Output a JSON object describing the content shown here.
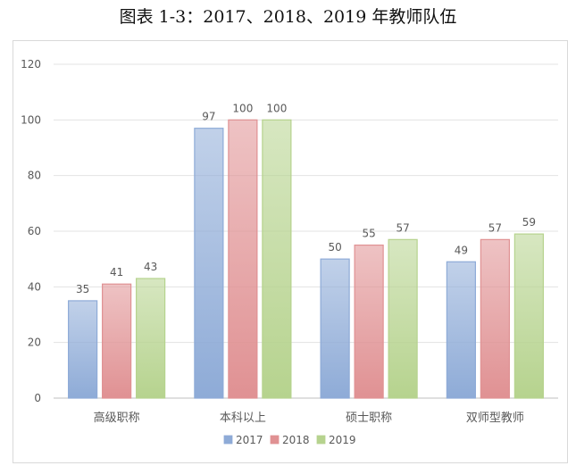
{
  "page": {
    "title": "图表 1-3：2017、2018、2019 年教师队伍"
  },
  "chart_data": {
    "type": "bar",
    "title": "",
    "xlabel": "",
    "ylabel": "",
    "categories": [
      "高级职称",
      "本科以上",
      "硕士职称",
      "双师型教师"
    ],
    "series": [
      {
        "name": "2017",
        "values": [
          35,
          97,
          50,
          49
        ],
        "color": "#8eabd7"
      },
      {
        "name": "2018",
        "values": [
          41,
          100,
          55,
          57
        ],
        "color": "#e09193"
      },
      {
        "name": "2019",
        "values": [
          43,
          100,
          57,
          59
        ],
        "color": "#b6d38e"
      }
    ],
    "ylim": [
      0,
      120
    ],
    "yticks": [
      0,
      20,
      40,
      60,
      80,
      100,
      120
    ],
    "grid": true,
    "legend": "bottom",
    "data_labels": true
  }
}
